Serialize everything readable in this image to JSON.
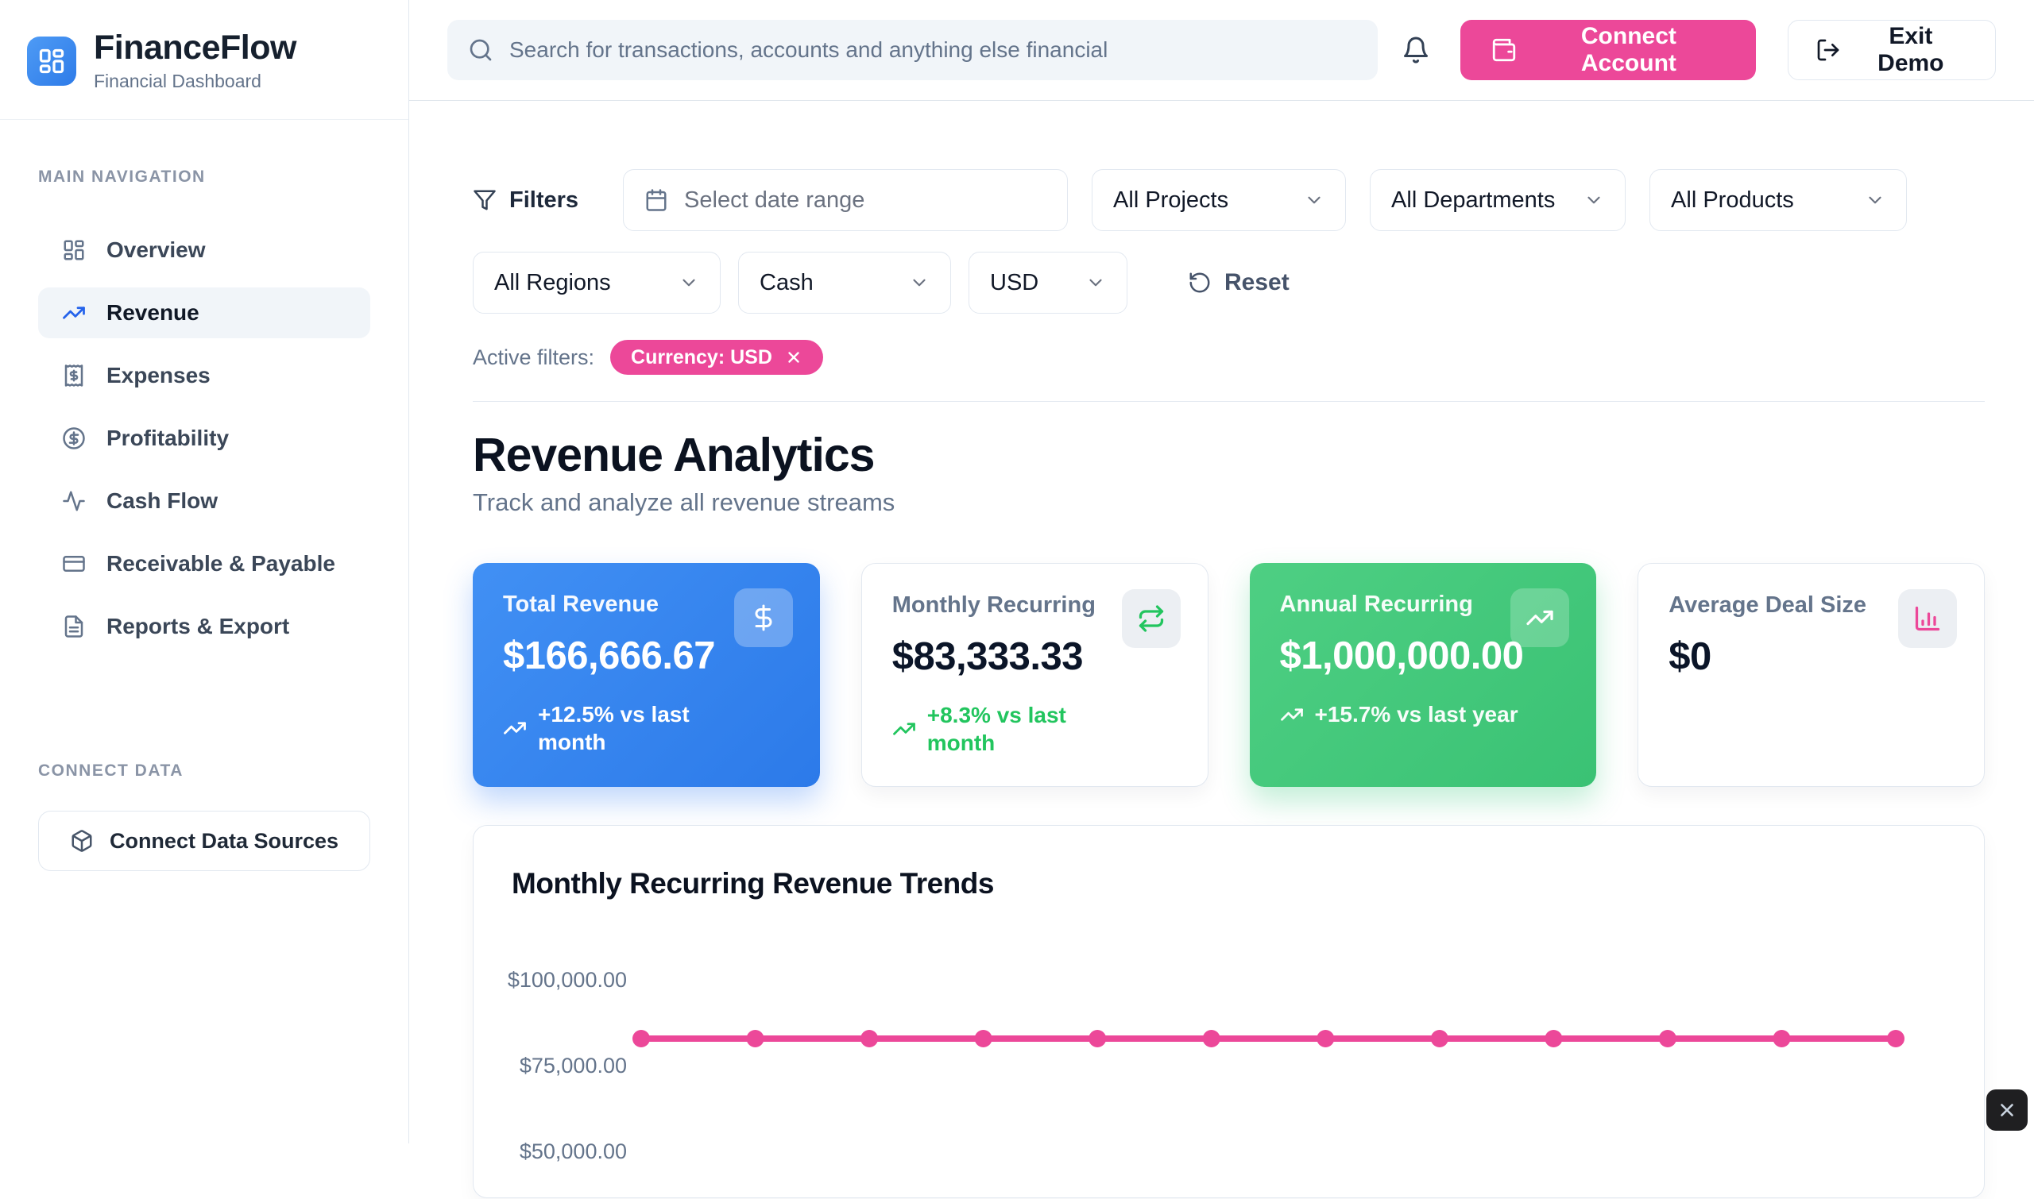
{
  "brand": {
    "name": "FinanceFlow",
    "tagline": "Financial Dashboard"
  },
  "header": {
    "search_placeholder": "Search for transactions, accounts and anything else financial",
    "connect_account_label": "Connect Account",
    "exit_demo_label": "Exit Demo"
  },
  "sidebar": {
    "nav_section_label": "MAIN NAVIGATION",
    "items": [
      {
        "label": "Overview",
        "icon": "layout-dashboard-icon",
        "active": false
      },
      {
        "label": "Revenue",
        "icon": "trending-up-icon",
        "active": true
      },
      {
        "label": "Expenses",
        "icon": "receipt-icon",
        "active": false
      },
      {
        "label": "Profitability",
        "icon": "circle-dollar-icon",
        "active": false
      },
      {
        "label": "Cash Flow",
        "icon": "activity-icon",
        "active": false
      },
      {
        "label": "Receivable & Payable",
        "icon": "credit-card-icon",
        "active": false
      },
      {
        "label": "Reports & Export",
        "icon": "file-text-icon",
        "active": false
      }
    ],
    "connect_section_label": "CONNECT DATA",
    "connect_button_label": "Connect Data Sources"
  },
  "filters": {
    "title": "Filters",
    "date_placeholder": "Select date range",
    "project_select": "All Projects",
    "department_select": "All Departments",
    "product_select": "All Products",
    "region_select": "All Regions",
    "method_select": "Cash",
    "currency_select": "USD",
    "reset_label": "Reset",
    "active_filters_label": "Active filters:",
    "active_chip": "Currency: USD"
  },
  "page": {
    "title": "Revenue Analytics",
    "subtitle": "Track and analyze all revenue streams"
  },
  "metric_cards": [
    {
      "label": "Total Revenue",
      "value": "$166,666.67",
      "delta": "+12.5% vs last month",
      "icon": "dollar-sign-icon",
      "style": "blue"
    },
    {
      "label": "Monthly Recurring",
      "value": "$83,333.33",
      "delta": "+8.3% vs last month",
      "icon": "repeat-icon",
      "style": "white"
    },
    {
      "label": "Annual Recurring",
      "value": "$1,000,000.00",
      "delta": "+15.7% vs last year",
      "icon": "trending-up-icon",
      "style": "green"
    },
    {
      "label": "Average Deal Size",
      "value": "$0",
      "delta": "",
      "icon": "bar-chart-icon",
      "style": "white"
    }
  ],
  "chart_data": {
    "type": "line",
    "title": "Monthly Recurring Revenue Trends",
    "x": [
      1,
      2,
      3,
      4,
      5,
      6,
      7,
      8,
      9,
      10,
      11,
      12
    ],
    "series": [
      {
        "name": "Monthly Recurring Revenue",
        "color": "#EC4899",
        "values": [
          83333.33,
          83333.33,
          83333.33,
          83333.33,
          83333.33,
          83333.33,
          83333.33,
          83333.33,
          83333.33,
          83333.33,
          83333.33,
          83333.33
        ]
      }
    ],
    "yticks": [
      {
        "label": "$100,000.00",
        "value": 100000
      },
      {
        "label": "$75,000.00",
        "value": 75000
      },
      {
        "label": "$50,000.00",
        "value": 50000
      }
    ],
    "ylim": [
      50000,
      100000
    ],
    "grid": false,
    "legend": false,
    "x_axis_labels_visible": false
  },
  "colors": {
    "accent_pink": "#EC4899",
    "accent_blue": "#2E7BE8",
    "positive_green": "#22C55E",
    "card_blue_gradient": [
      "#4190F4",
      "#2C7AE9"
    ],
    "card_green_gradient": [
      "#4ECF83",
      "#3AC274"
    ],
    "border": "#E2E8F0",
    "muted_text": "#64748B"
  }
}
